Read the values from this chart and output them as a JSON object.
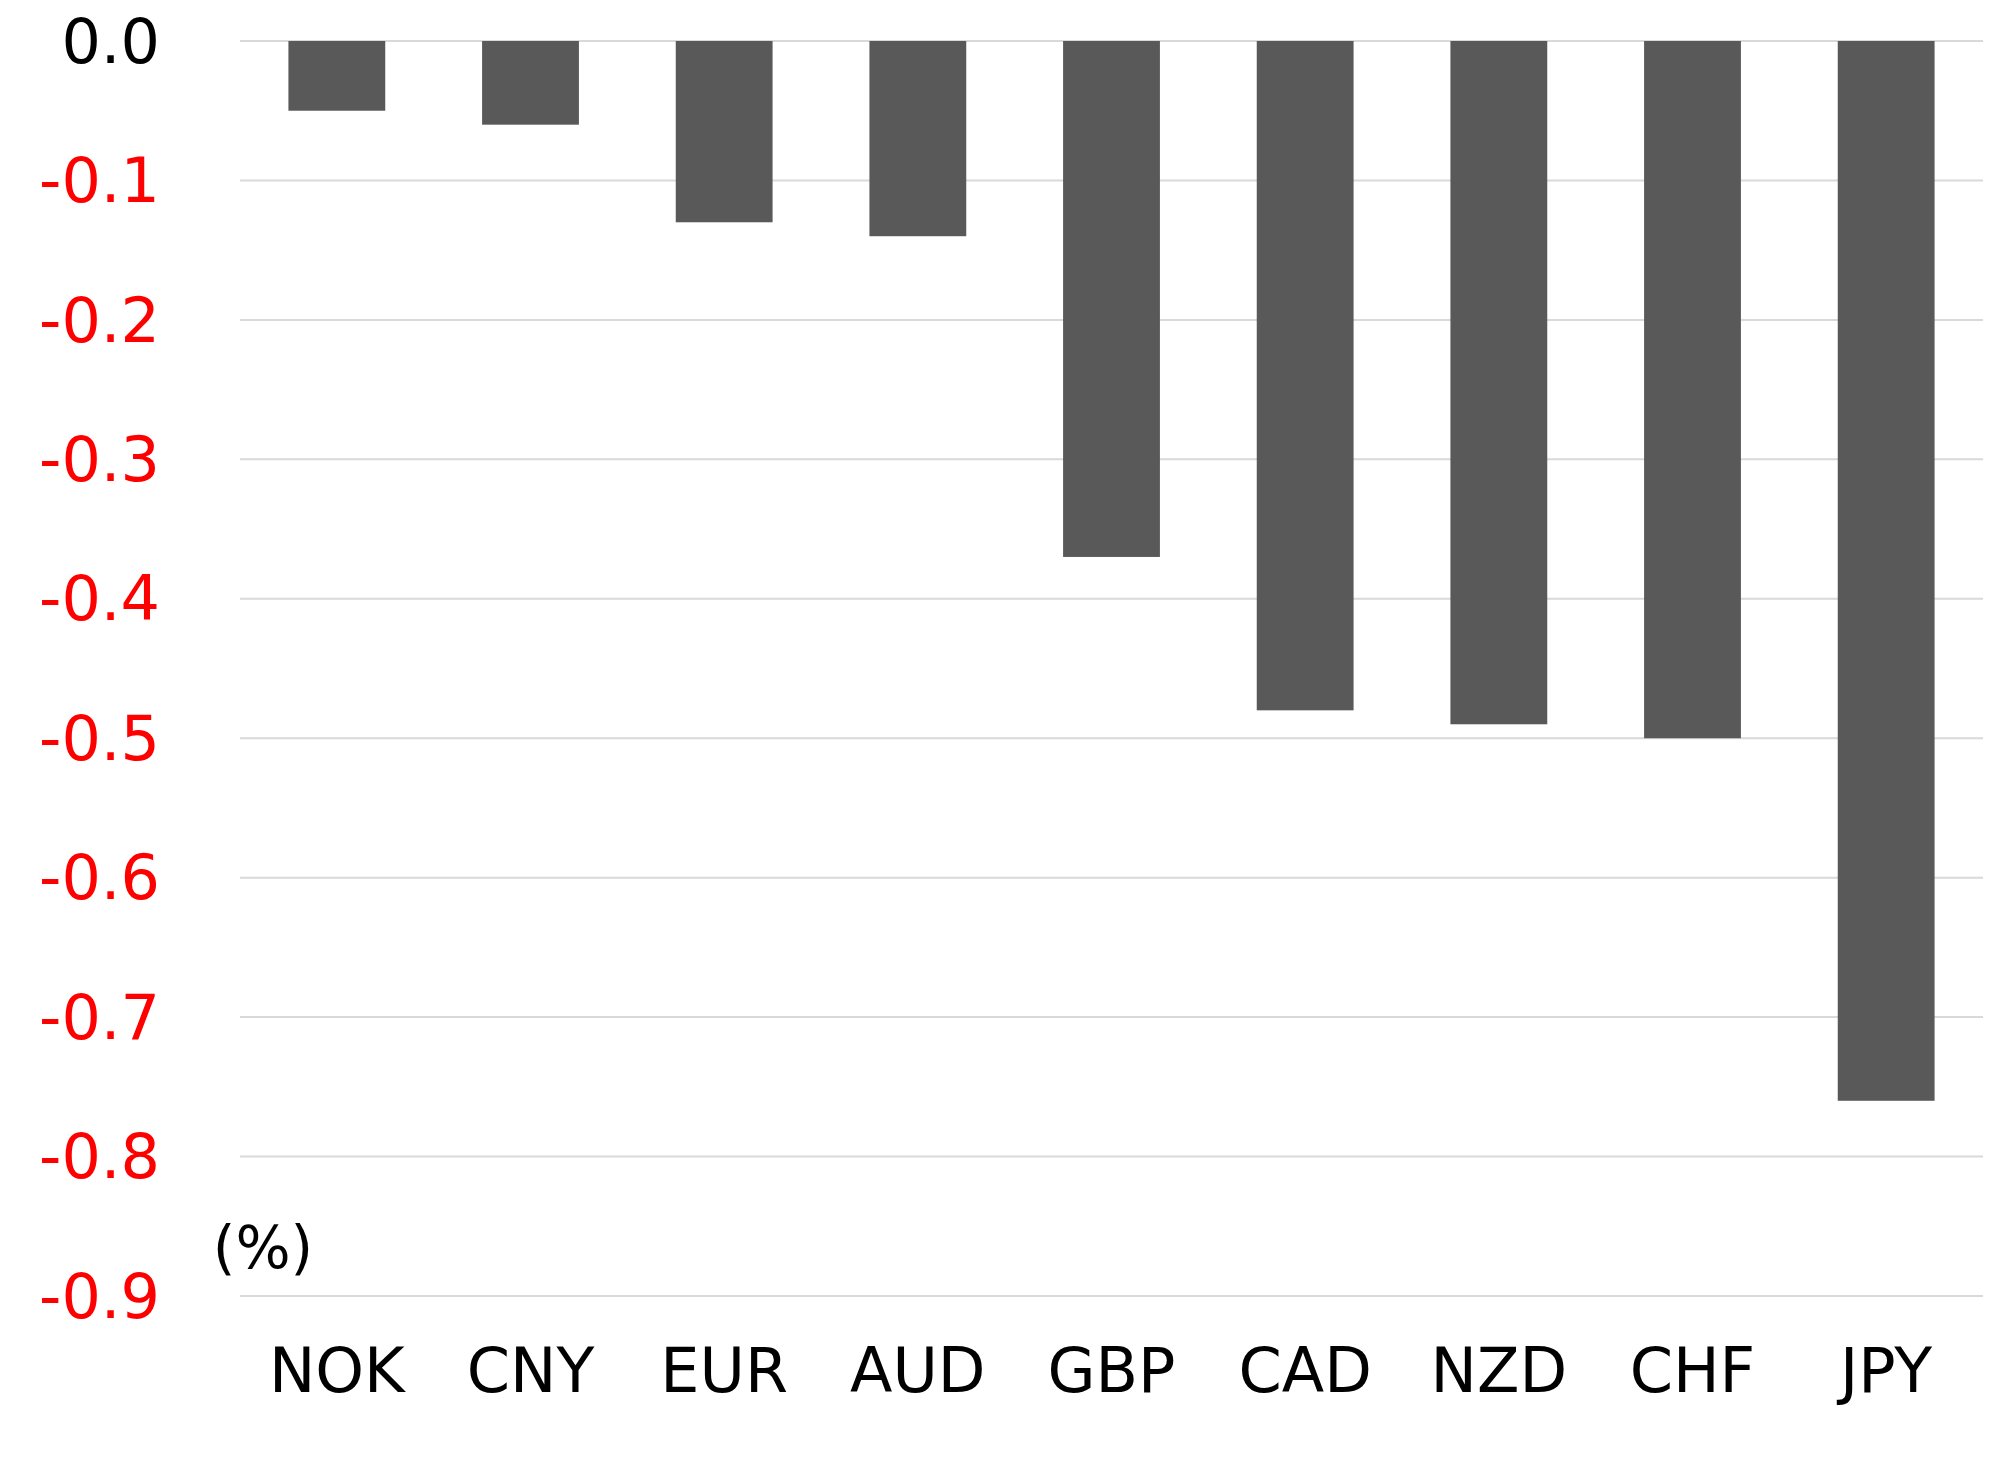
{
  "chart_data": {
    "type": "bar",
    "ylabel": "(%)",
    "categories": [
      "NOK",
      "CNY",
      "EUR",
      "AUD",
      "GBP",
      "CAD",
      "NZD",
      "CHF",
      "JPY"
    ],
    "values": [
      -0.05,
      -0.06,
      -0.13,
      -0.14,
      -0.37,
      -0.48,
      -0.49,
      -0.5,
      -0.76
    ],
    "color": "#595959",
    "ylim": [
      -0.9,
      0
    ],
    "yticks": [
      {
        "value": 0,
        "label": "0.0"
      },
      -0.1,
      -0.2,
      -0.3,
      -0.4,
      -0.5,
      -0.6,
      -0.7,
      -0.8,
      -0.9
    ],
    "grid": "y"
  }
}
